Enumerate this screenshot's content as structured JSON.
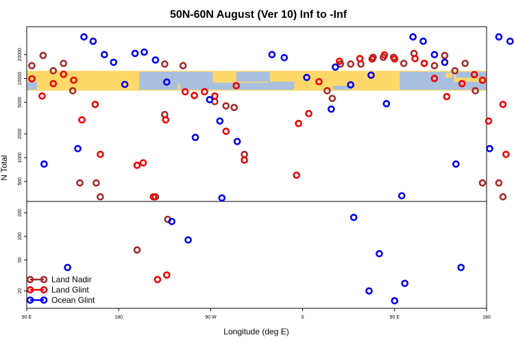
{
  "chart_data": {
    "type": "scatter",
    "title": "50N-60N August (Ver 10)   Inf to -Inf",
    "xlabel": "Longitude (deg E)",
    "ylabel": "N Total",
    "x_ticks": [
      {
        "value": 0,
        "label": "90 E"
      },
      {
        "value": 90,
        "label": "180"
      },
      {
        "value": 180,
        "label": "90 W"
      },
      {
        "value": 270,
        "label": "0"
      },
      {
        "value": 360,
        "label": "90 E"
      },
      {
        "value": 450,
        "label": "180"
      }
    ],
    "xlim": [
      0,
      450
    ],
    "log_y": true,
    "panels": [
      {
        "id": "top",
        "ylim": [
          280,
          45000
        ],
        "y_ticks": [
          {
            "value": 500,
            "label": "500"
          },
          {
            "value": 1000,
            "label": "1000"
          },
          {
            "value": 2000,
            "label": "2000"
          },
          {
            "value": 5000,
            "label": "5000"
          },
          {
            "value": 10000,
            "label": "10000"
          },
          {
            "value": 20000,
            "label": "20000"
          }
        ]
      },
      {
        "id": "bottom",
        "ylim": [
          12,
          280
        ],
        "y_ticks": [
          {
            "value": 20,
            "label": "20"
          },
          {
            "value": 50,
            "label": "50"
          },
          {
            "value": 100,
            "label": "100"
          },
          {
            "value": 200,
            "label": "200"
          }
        ]
      }
    ],
    "series": [
      {
        "name": "Land Nadir",
        "color": "#a52a2a",
        "points": [
          [
            5,
            14500
          ],
          [
            16,
            19500
          ],
          [
            26,
            12500
          ],
          [
            36,
            15500
          ],
          [
            45,
            7000
          ],
          [
            52,
            480
          ],
          [
            68,
            480
          ],
          [
            72,
            320
          ],
          [
            126,
            320
          ],
          [
            135,
            3500
          ],
          [
            135,
            15200
          ],
          [
            153,
            14500
          ],
          [
            184,
            5100
          ],
          [
            195,
            4500
          ],
          [
            203,
            4300
          ],
          [
            213,
            1100
          ],
          [
            294,
            7000
          ],
          [
            299,
            5600
          ],
          [
            307,
            15200
          ],
          [
            317,
            15200
          ],
          [
            327,
            15200
          ],
          [
            339,
            18500
          ],
          [
            349,
            18500
          ],
          [
            359,
            18500
          ],
          [
            369,
            15500
          ],
          [
            379,
            20700
          ],
          [
            389,
            15500
          ],
          [
            399,
            14500
          ],
          [
            409,
            19500
          ],
          [
            419,
            12500
          ],
          [
            429,
            15500
          ],
          [
            439,
            7000
          ],
          [
            446,
            480
          ],
          [
            462,
            480
          ],
          [
            466,
            320
          ],
          [
            108,
            67
          ],
          [
            138,
            165
          ]
        ]
      },
      {
        "name": "Land Glint",
        "color": "#ee0000",
        "points": [
          [
            5,
            9900
          ],
          [
            15,
            6000
          ],
          [
            26,
            8600
          ],
          [
            36,
            11300
          ],
          [
            46,
            9500
          ],
          [
            54,
            3000
          ],
          [
            67,
            4700
          ],
          [
            72,
            1100
          ],
          [
            108,
            800
          ],
          [
            114,
            860
          ],
          [
            124,
            320
          ],
          [
            136,
            3000
          ],
          [
            155,
            6800
          ],
          [
            164,
            6100
          ],
          [
            174,
            6800
          ],
          [
            184,
            6000
          ],
          [
            195,
            2150
          ],
          [
            205,
            8100
          ],
          [
            213,
            930
          ],
          [
            264,
            600
          ],
          [
            266,
            2700
          ],
          [
            276,
            3600
          ],
          [
            286,
            9100
          ],
          [
            306,
            16500
          ],
          [
            326,
            17800
          ],
          [
            338,
            17600
          ],
          [
            350,
            19800
          ],
          [
            360,
            17600
          ],
          [
            380,
            17800
          ],
          [
            389,
            15500
          ],
          [
            399,
            10000
          ],
          [
            411,
            5900
          ],
          [
            426,
            8600
          ],
          [
            438,
            11200
          ],
          [
            446,
            9500
          ],
          [
            452,
            2900
          ],
          [
            466,
            4700
          ],
          [
            469,
            1100
          ],
          [
            128,
            28
          ],
          [
            137,
            32
          ]
        ]
      },
      {
        "name": "Ocean Glint",
        "color": "#0000ee",
        "points": [
          [
            17,
            830
          ],
          [
            50,
            1300
          ],
          [
            56,
            33500
          ],
          [
            65,
            29500
          ],
          [
            76,
            20000
          ],
          [
            85,
            16000
          ],
          [
            96,
            8400
          ],
          [
            106,
            20700
          ],
          [
            115,
            21500
          ],
          [
            126,
            17100
          ],
          [
            137,
            9000
          ],
          [
            165,
            1800
          ],
          [
            179,
            5400
          ],
          [
            189,
            2900
          ],
          [
            191,
            310
          ],
          [
            206,
            1600
          ],
          [
            240,
            20000
          ],
          [
            252,
            18300
          ],
          [
            274,
            10300
          ],
          [
            298,
            4100
          ],
          [
            302,
            13900
          ],
          [
            317,
            8300
          ],
          [
            337,
            11000
          ],
          [
            352,
            4800
          ],
          [
            367,
            330
          ],
          [
            378,
            33500
          ],
          [
            388,
            29500
          ],
          [
            399,
            20000
          ],
          [
            409,
            16000
          ],
          [
            420,
            830
          ],
          [
            453,
            1300
          ],
          [
            462,
            33500
          ],
          [
            473,
            29500
          ],
          [
            484,
            20000
          ],
          [
            494,
            16000
          ],
          [
            40,
            40
          ],
          [
            142,
            155
          ],
          [
            158,
            90
          ],
          [
            320,
            175
          ],
          [
            335,
            20
          ],
          [
            345,
            60
          ],
          [
            360,
            15
          ],
          [
            370,
            25
          ],
          [
            425,
            40
          ]
        ]
      }
    ],
    "legend": {
      "placement": "bottom-left",
      "entries": [
        "Land Nadir",
        "Land Glint",
        "Ocean Glint"
      ]
    },
    "background_map": {
      "type": "world-map-strip",
      "land_color": "#ffd86a",
      "ocean_color": "#a9bfdf",
      "y_range": [
        7000,
        12500
      ]
    }
  }
}
